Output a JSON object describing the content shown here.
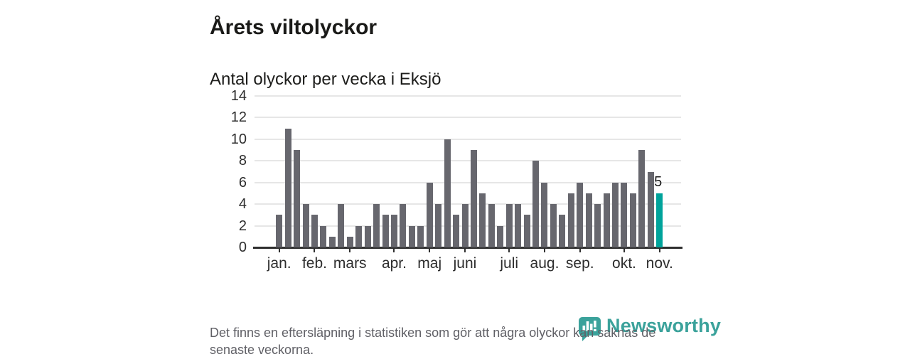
{
  "header": {
    "title": "Årets viltolyckor",
    "subtitle": "Antal olyckor per vecka i Eksjö"
  },
  "chart_data": {
    "type": "bar",
    "title": "Årets viltolyckor",
    "subtitle": "Antal olyckor per vecka i Eksjö",
    "xlabel": "",
    "ylabel": "",
    "x_unit": "vecka",
    "values": [
      3,
      11,
      9,
      4,
      3,
      2,
      1,
      4,
      1,
      2,
      2,
      4,
      3,
      3,
      4,
      2,
      2,
      6,
      4,
      10,
      3,
      4,
      9,
      5,
      4,
      2,
      4,
      4,
      3,
      8,
      6,
      4,
      3,
      5,
      6,
      5,
      4,
      5,
      6,
      6,
      5,
      9,
      7,
      5
    ],
    "highlight_index": 43,
    "highlight_value_label": "5",
    "months": [
      {
        "label": "jan.",
        "week_index": 0
      },
      {
        "label": "feb.",
        "week_index": 4
      },
      {
        "label": "mars",
        "week_index": 8
      },
      {
        "label": "apr.",
        "week_index": 13
      },
      {
        "label": "maj",
        "week_index": 17
      },
      {
        "label": "juni",
        "week_index": 21
      },
      {
        "label": "juli",
        "week_index": 26
      },
      {
        "label": "aug.",
        "week_index": 30
      },
      {
        "label": "sep.",
        "week_index": 34
      },
      {
        "label": "okt.",
        "week_index": 39
      },
      {
        "label": "nov.",
        "week_index": 43
      }
    ],
    "yticks": [
      0,
      2,
      4,
      6,
      8,
      10,
      12,
      14
    ],
    "ylim": [
      0,
      14
    ],
    "grid": true,
    "legend": false,
    "bar_color": "#67676e",
    "highlight_color": "#00a39b"
  },
  "footer": {
    "note": "Det finns en eftersläpning i statistiken som gör att några olyckor kan saknas de senaste veckorna.",
    "brand": "Newsworthy",
    "brand_color": "#3ba29b"
  }
}
